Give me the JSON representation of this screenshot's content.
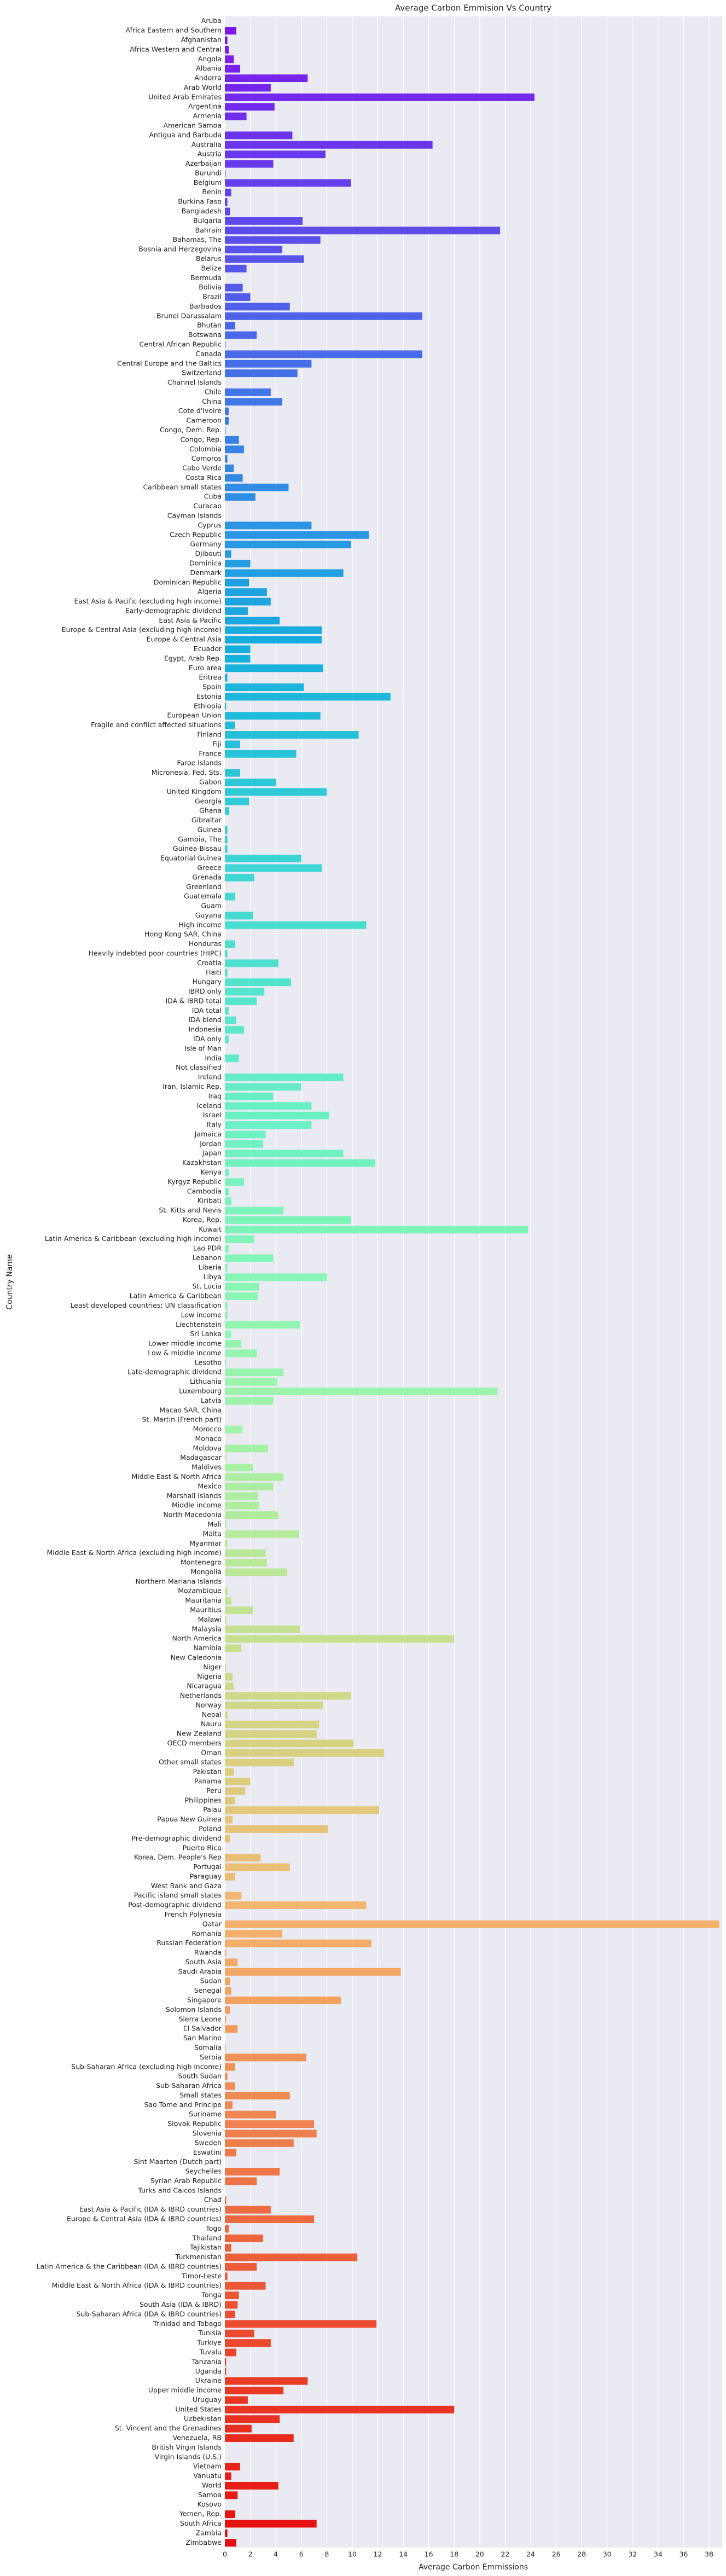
{
  "chart_data": {
    "type": "barh",
    "title": "Average Carbon Emmision Vs Country",
    "xlabel": "Average Carbon Emmissions",
    "ylabel": "Country Name",
    "palette": "rainbow",
    "grid": true,
    "xlim": [
      0,
      39.03
    ],
    "xticks": [
      0,
      2,
      4,
      6,
      8,
      10,
      12,
      14,
      16,
      18,
      20,
      22,
      24,
      26,
      28,
      30,
      32,
      34,
      36,
      38
    ],
    "categories": [
      "Aruba",
      "Africa Eastern and Southern",
      "Afghanistan",
      "Africa Western and Central",
      "Angola",
      "Albania",
      "Andorra",
      "Arab World",
      "United Arab Emirates",
      "Argentina",
      "Armenia",
      "American Samoa",
      "Antigua and Barbuda",
      "Australia",
      "Austria",
      "Azerbaijan",
      "Burundi",
      "Belgium",
      "Benin",
      "Burkina Faso",
      "Bangladesh",
      "Bulgaria",
      "Bahrain",
      "Bahamas, The",
      "Bosnia and Herzegovina",
      "Belarus",
      "Belize",
      "Bermuda",
      "Bolivia",
      "Brazil",
      "Barbados",
      "Brunei Darussalam",
      "Bhutan",
      "Botswana",
      "Central African Republic",
      "Canada",
      "Central Europe and the Baltics",
      "Switzerland",
      "Channel Islands",
      "Chile",
      "China",
      "Cote d'Ivoire",
      "Cameroon",
      "Congo, Dem. Rep.",
      "Congo, Rep.",
      "Colombia",
      "Comoros",
      "Cabo Verde",
      "Costa Rica",
      "Caribbean small states",
      "Cuba",
      "Curacao",
      "Cayman Islands",
      "Cyprus",
      "Czech Republic",
      "Germany",
      "Djibouti",
      "Dominica",
      "Denmark",
      "Dominican Republic",
      "Algeria",
      "East Asia & Pacific (excluding high income)",
      "Early-demographic dividend",
      "East Asia & Pacific",
      "Europe & Central Asia (excluding high income)",
      "Europe & Central Asia",
      "Ecuador",
      "Egypt, Arab Rep.",
      "Euro area",
      "Eritrea",
      "Spain",
      "Estonia",
      "Ethiopia",
      "European Union",
      "Fragile and conflict affected situations",
      "Finland",
      "Fiji",
      "France",
      "Faroe Islands",
      "Micronesia, Fed. Sts.",
      "Gabon",
      "United Kingdom",
      "Georgia",
      "Ghana",
      "Gibraltar",
      "Guinea",
      "Gambia, The",
      "Guinea-Bissau",
      "Equatorial Guinea",
      "Greece",
      "Grenada",
      "Greenland",
      "Guatemala",
      "Guam",
      "Guyana",
      "High income",
      "Hong Kong SAR, China",
      "Honduras",
      "Heavily indebted poor countries (HIPC)",
      "Croatia",
      "Haiti",
      "Hungary",
      "IBRD only",
      "IDA & IBRD total",
      "IDA total",
      "IDA blend",
      "Indonesia",
      "IDA only",
      "Isle of Man",
      "India",
      "Not classified",
      "Ireland",
      "Iran, Islamic Rep.",
      "Iraq",
      "Iceland",
      "Israel",
      "Italy",
      "Jamaica",
      "Jordan",
      "Japan",
      "Kazakhstan",
      "Kenya",
      "Kyrgyz Republic",
      "Cambodia",
      "Kiribati",
      "St. Kitts and Nevis",
      "Korea, Rep.",
      "Kuwait",
      "Latin America & Caribbean (excluding high income)",
      "Lao PDR",
      "Lebanon",
      "Liberia",
      "Libya",
      "St. Lucia",
      "Latin America & Caribbean",
      "Least developed countries: UN classification",
      "Low income",
      "Liechtenstein",
      "Sri Lanka",
      "Lower middle income",
      "Low & middle income",
      "Lesotho",
      "Late-demographic dividend",
      "Lithuania",
      "Luxembourg",
      "Latvia",
      "Macao SAR, China",
      "St. Martin (French part)",
      "Morocco",
      "Monaco",
      "Moldova",
      "Madagascar",
      "Maldives",
      "Middle East & North Africa",
      "Mexico",
      "Marshall Islands",
      "Middle income",
      "North Macedonia",
      "Mali",
      "Malta",
      "Myanmar",
      "Middle East & North Africa (excluding high income)",
      "Montenegro",
      "Mongolia",
      "Northern Mariana Islands",
      "Mozambique",
      "Mauritania",
      "Mauritius",
      "Malawi",
      "Malaysia",
      "North America",
      "Namibia",
      "New Caledonia",
      "Niger",
      "Nigeria",
      "Nicaragua",
      "Netherlands",
      "Norway",
      "Nepal",
      "Nauru",
      "New Zealand",
      "OECD members",
      "Oman",
      "Other small states",
      "Pakistan",
      "Panama",
      "Peru",
      "Philippines",
      "Palau",
      "Papua New Guinea",
      "Poland",
      "Pre-demographic dividend",
      "Puerto Rico",
      "Korea, Dem. People's Rep",
      "Portugal",
      "Paraguay",
      "West Bank and Gaza",
      "Pacific island small states",
      "Post-demographic dividend",
      "French Polynesia",
      "Qatar",
      "Romania",
      "Russian Federation",
      "Rwanda",
      "South Asia",
      "Saudi Arabia",
      "Sudan",
      "Senegal",
      "Singapore",
      "Solomon Islands",
      "Sierra Leone",
      "El Salvador",
      "San Marino",
      "Somalia",
      "Serbia",
      "Sub-Saharan Africa (excluding high income)",
      "South Sudan",
      "Sub-Saharan Africa",
      "Small states",
      "Sao Tome and Principe",
      "Suriname",
      "Slovak Republic",
      "Slovenia",
      "Sweden",
      "Eswatini",
      "Sint Maarten (Dutch part)",
      "Seychelles",
      "Syrian Arab Republic",
      "Turks and Caicos Islands",
      "Chad",
      "East Asia & Pacific (IDA & IBRD countries)",
      "Europe & Central Asia (IDA & IBRD countries)",
      "Togo",
      "Thailand",
      "Tajikistan",
      "Turkmenistan",
      "Latin America & the Caribbean (IDA & IBRD countries)",
      "Timor-Leste",
      "Middle East & North Africa (IDA & IBRD countries)",
      "Tonga",
      "South Asia (IDA & IBRD)",
      "Sub-Saharan Africa (IDA & IBRD countries)",
      "Trinidad and Tobago",
      "Tunisia",
      "Turkiye",
      "Tuvalu",
      "Tanzania",
      "Uganda",
      "Ukraine",
      "Upper middle income",
      "Uruguay",
      "United States",
      "Uzbekistan",
      "St. Vincent and the Grenadines",
      "Venezuela, RB",
      "British Virgin Islands",
      "Virgin Islands (U.S.)",
      "Vietnam",
      "Vanuatu",
      "World",
      "Samoa",
      "Kosovo",
      "Yemen, Rep.",
      "South Africa",
      "Zambia",
      "Zimbabwe"
    ],
    "values": [
      null,
      0.9,
      0.2,
      0.3,
      0.7,
      1.2,
      6.5,
      3.6,
      24.3,
      3.9,
      1.7,
      null,
      5.3,
      16.3,
      7.9,
      3.8,
      0.05,
      9.9,
      0.5,
      0.2,
      0.4,
      6.1,
      21.6,
      7.5,
      4.5,
      6.2,
      1.7,
      null,
      1.4,
      2.0,
      5.1,
      15.5,
      0.8,
      2.5,
      0.05,
      15.5,
      6.8,
      5.7,
      null,
      3.6,
      4.5,
      0.3,
      0.3,
      0.05,
      1.1,
      1.5,
      0.2,
      0.7,
      1.4,
      5.0,
      2.4,
      null,
      null,
      6.8,
      11.3,
      9.9,
      0.5,
      2.0,
      9.3,
      1.9,
      3.3,
      3.6,
      1.8,
      4.3,
      7.6,
      7.6,
      2.0,
      2.0,
      7.7,
      0.2,
      6.2,
      13.0,
      0.1,
      7.5,
      0.8,
      10.5,
      1.2,
      5.6,
      null,
      1.2,
      4.0,
      8.0,
      1.9,
      0.35,
      null,
      0.2,
      0.2,
      0.2,
      6.0,
      7.6,
      2.3,
      null,
      0.8,
      null,
      2.2,
      11.1,
      null,
      0.8,
      0.2,
      4.2,
      0.2,
      5.2,
      3.1,
      2.5,
      0.3,
      0.9,
      1.5,
      0.3,
      null,
      1.1,
      null,
      9.3,
      6.0,
      3.8,
      6.8,
      8.2,
      6.8,
      3.2,
      3.0,
      9.3,
      11.8,
      0.3,
      1.5,
      0.3,
      0.5,
      4.6,
      9.9,
      23.8,
      2.3,
      0.3,
      3.8,
      0.2,
      8.0,
      2.7,
      2.6,
      0.2,
      0.2,
      5.9,
      0.5,
      1.3,
      2.5,
      0.1,
      4.6,
      4.1,
      21.4,
      3.8,
      null,
      null,
      1.4,
      null,
      3.4,
      0.1,
      2.2,
      4.6,
      3.8,
      2.6,
      2.7,
      4.2,
      0.1,
      5.8,
      0.2,
      3.2,
      3.3,
      4.9,
      null,
      0.2,
      0.5,
      2.2,
      0.1,
      5.9,
      18.0,
      1.3,
      null,
      0.1,
      0.6,
      0.7,
      9.9,
      7.7,
      0.2,
      7.4,
      7.2,
      10.1,
      12.5,
      5.4,
      0.7,
      2.0,
      1.6,
      0.8,
      12.1,
      0.6,
      8.1,
      0.4,
      null,
      2.8,
      5.1,
      0.8,
      null,
      1.3,
      11.1,
      null,
      38.8,
      4.5,
      11.5,
      0.1,
      1.0,
      13.8,
      0.4,
      0.5,
      9.1,
      0.4,
      0.1,
      1.0,
      null,
      0.05,
      6.4,
      0.8,
      0.2,
      0.8,
      5.1,
      0.6,
      4.0,
      7.0,
      7.2,
      5.4,
      0.9,
      null,
      4.3,
      2.5,
      null,
      0.1,
      3.6,
      7.0,
      0.3,
      3.0,
      0.5,
      10.4,
      2.5,
      0.2,
      3.2,
      1.1,
      1.0,
      0.8,
      11.9,
      2.3,
      3.6,
      0.9,
      0.1,
      0.1,
      6.5,
      4.6,
      1.8,
      18.0,
      4.3,
      2.1,
      5.4,
      null,
      null,
      1.2,
      0.5,
      4.2,
      1.0,
      null,
      0.8,
      7.2,
      0.2,
      0.9
    ]
  }
}
